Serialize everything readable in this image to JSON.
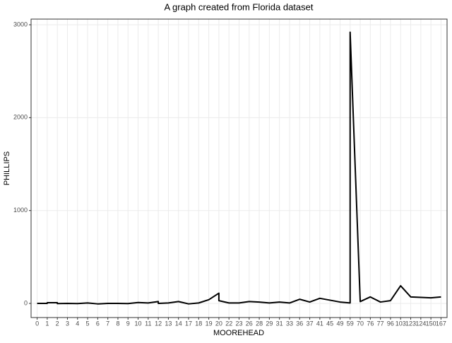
{
  "chart_data": {
    "type": "line",
    "title": "A graph created from Florida dataset",
    "x_label": "MOOREHEAD",
    "y_label": "PHILLIPS",
    "categories": [
      "0",
      "1",
      "2",
      "3",
      "4",
      "5",
      "6",
      "7",
      "8",
      "9",
      "10",
      "11",
      "12",
      "13",
      "14",
      "17",
      "18",
      "19",
      "20",
      "22",
      "23",
      "26",
      "28",
      "29",
      "31",
      "33",
      "36",
      "37",
      "41",
      "45",
      "49",
      "59",
      "70",
      "76",
      "77",
      "96",
      "103",
      "123",
      "124",
      "150",
      "167"
    ],
    "x": [
      "0",
      "1",
      "1",
      "2",
      "2",
      "3",
      "4",
      "5",
      "6",
      "7",
      "8",
      "9",
      "10",
      "11",
      "12",
      "12",
      "13",
      "14",
      "17",
      "18",
      "19",
      "20",
      "20",
      "22",
      "23",
      "26",
      "28",
      "29",
      "31",
      "33",
      "36",
      "37",
      "41",
      "45",
      "49",
      "59",
      "59",
      "70",
      "76",
      "77",
      "96",
      "103",
      "123",
      "124",
      "150",
      "167"
    ],
    "values": [
      0,
      0,
      8,
      8,
      -2,
      0,
      -2,
      5,
      -5,
      0,
      0,
      -2,
      10,
      5,
      20,
      0,
      5,
      20,
      -5,
      5,
      40,
      110,
      30,
      5,
      5,
      20,
      15,
      5,
      15,
      5,
      45,
      15,
      55,
      35,
      15,
      5,
      2920,
      20,
      70,
      15,
      30,
      190,
      70,
      65,
      60,
      70
    ],
    "color": "#000000",
    "ylim": [
      -152,
      3061
    ],
    "yticks": [
      0,
      1000,
      2000,
      3000
    ],
    "grid": true
  }
}
